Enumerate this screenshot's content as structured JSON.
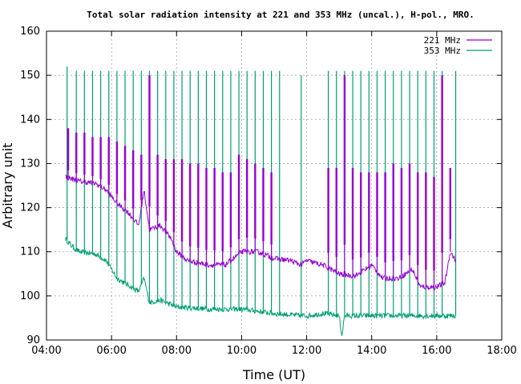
{
  "chart_data": {
    "type": "line",
    "title": "Total solar radiation intensity at 221 and 353 MHz (uncal.), H-pol., MRO.",
    "xlabel": "Time (UT)",
    "ylabel": "Arbitrary unit",
    "xlim": [
      "04:00",
      "18:00"
    ],
    "ylim": [
      90,
      160
    ],
    "x_ticks": [
      "04:00",
      "06:00",
      "08:00",
      "10:00",
      "12:00",
      "14:00",
      "16:00",
      "18:00"
    ],
    "y_ticks": [
      90,
      100,
      110,
      120,
      130,
      140,
      150,
      160
    ],
    "grid": true,
    "legend_position": "top-right",
    "series": [
      {
        "name": "221 MHz",
        "color": "#9400d3",
        "baseline": [
          [
            "04:35",
            127
          ],
          [
            "05:00",
            126
          ],
          [
            "05:30",
            125.5
          ],
          [
            "05:50",
            124
          ],
          [
            "06:10",
            121
          ],
          [
            "06:30",
            119
          ],
          [
            "06:50",
            116
          ],
          [
            "07:00",
            124
          ],
          [
            "07:10",
            115
          ],
          [
            "07:30",
            116
          ],
          [
            "07:50",
            113
          ],
          [
            "08:00",
            110
          ],
          [
            "08:20",
            108
          ],
          [
            "08:40",
            107.5
          ],
          [
            "09:00",
            107
          ],
          [
            "09:30",
            107
          ],
          [
            "10:00",
            110
          ],
          [
            "10:30",
            110
          ],
          [
            "11:00",
            108.5
          ],
          [
            "11:30",
            108
          ],
          [
            "11:50",
            107
          ],
          [
            "12:00",
            108
          ],
          [
            "12:30",
            107
          ],
          [
            "13:00",
            105
          ],
          [
            "13:30",
            104.5
          ],
          [
            "14:00",
            107
          ],
          [
            "14:20",
            104
          ],
          [
            "14:50",
            104
          ],
          [
            "15:15",
            106
          ],
          [
            "15:30",
            102
          ],
          [
            "16:00",
            102
          ],
          [
            "16:15",
            103
          ],
          [
            "16:25",
            110
          ],
          [
            "16:35",
            108
          ]
        ],
        "spikes": [
          [
            "04:40",
            138
          ],
          [
            "04:55",
            137
          ],
          [
            "05:10",
            137
          ],
          [
            "05:25",
            136
          ],
          [
            "05:40",
            136
          ],
          [
            "05:55",
            136
          ],
          [
            "06:10",
            135
          ],
          [
            "06:25",
            134
          ],
          [
            "06:40",
            133
          ],
          [
            "06:55",
            132
          ],
          [
            "07:10",
            150
          ],
          [
            "07:25",
            132
          ],
          [
            "07:40",
            131
          ],
          [
            "07:55",
            131
          ],
          [
            "08:10",
            131
          ],
          [
            "08:25",
            130
          ],
          [
            "08:40",
            130
          ],
          [
            "08:55",
            129
          ],
          [
            "09:10",
            129
          ],
          [
            "09:25",
            128
          ],
          [
            "09:40",
            128
          ],
          [
            "09:55",
            132
          ],
          [
            "10:10",
            131
          ],
          [
            "10:25",
            130
          ],
          [
            "10:40",
            129
          ],
          [
            "10:55",
            128
          ],
          [
            "12:40",
            129
          ],
          [
            "12:55",
            129
          ],
          [
            "13:10",
            150
          ],
          [
            "13:25",
            129
          ],
          [
            "13:40",
            128
          ],
          [
            "13:55",
            128
          ],
          [
            "14:10",
            128
          ],
          [
            "14:25",
            128
          ],
          [
            "14:40",
            130
          ],
          [
            "14:55",
            129
          ],
          [
            "15:10",
            130
          ],
          [
            "15:25",
            128
          ],
          [
            "15:40",
            128
          ],
          [
            "15:55",
            127
          ],
          [
            "16:10",
            150
          ],
          [
            "16:25",
            129
          ]
        ]
      },
      {
        "name": "353 MHz",
        "color": "#009e73",
        "baseline": [
          [
            "04:35",
            113
          ],
          [
            "04:45",
            111.5
          ],
          [
            "05:00",
            110
          ],
          [
            "05:30",
            109.5
          ],
          [
            "05:50",
            108
          ],
          [
            "06:10",
            104
          ],
          [
            "06:30",
            102.5
          ],
          [
            "06:50",
            101
          ],
          [
            "07:00",
            104
          ],
          [
            "07:10",
            98.5
          ],
          [
            "07:30",
            99
          ],
          [
            "07:50",
            98
          ],
          [
            "08:00",
            97.5
          ],
          [
            "09:00",
            97
          ],
          [
            "10:00",
            97
          ],
          [
            "11:00",
            96
          ],
          [
            "11:50",
            95.5
          ],
          [
            "12:00",
            95.5
          ],
          [
            "12:30",
            96
          ],
          [
            "13:00",
            95.5
          ],
          [
            "13:05",
            91
          ],
          [
            "13:10",
            95.5
          ],
          [
            "14:00",
            95.5
          ],
          [
            "15:00",
            95.5
          ],
          [
            "16:00",
            95.5
          ],
          [
            "16:35",
            95.5
          ]
        ],
        "spikes": [
          [
            "04:38",
            152
          ],
          [
            "04:55",
            151
          ],
          [
            "05:10",
            151
          ],
          [
            "05:25",
            151
          ],
          [
            "05:40",
            151
          ],
          [
            "05:55",
            151
          ],
          [
            "06:10",
            151
          ],
          [
            "06:25",
            151
          ],
          [
            "06:40",
            151
          ],
          [
            "06:55",
            151
          ],
          [
            "07:10",
            151
          ],
          [
            "07:25",
            151
          ],
          [
            "07:40",
            151
          ],
          [
            "07:55",
            151
          ],
          [
            "08:10",
            151
          ],
          [
            "08:25",
            151
          ],
          [
            "08:40",
            151
          ],
          [
            "08:55",
            151
          ],
          [
            "09:10",
            151
          ],
          [
            "09:25",
            151
          ],
          [
            "09:40",
            151
          ],
          [
            "09:55",
            151
          ],
          [
            "10:10",
            151
          ],
          [
            "10:25",
            151
          ],
          [
            "10:40",
            151
          ],
          [
            "10:55",
            151
          ],
          [
            "11:10",
            151
          ],
          [
            "11:50",
            150
          ],
          [
            "12:40",
            151
          ],
          [
            "12:55",
            151
          ],
          [
            "13:10",
            151
          ],
          [
            "13:25",
            151
          ],
          [
            "13:40",
            151
          ],
          [
            "13:55",
            151
          ],
          [
            "14:10",
            151
          ],
          [
            "14:25",
            151
          ],
          [
            "14:40",
            151
          ],
          [
            "14:55",
            151
          ],
          [
            "15:10",
            151
          ],
          [
            "15:25",
            151
          ],
          [
            "15:40",
            151
          ],
          [
            "15:55",
            151
          ],
          [
            "16:10",
            151
          ],
          [
            "16:35",
            151
          ]
        ]
      }
    ]
  }
}
